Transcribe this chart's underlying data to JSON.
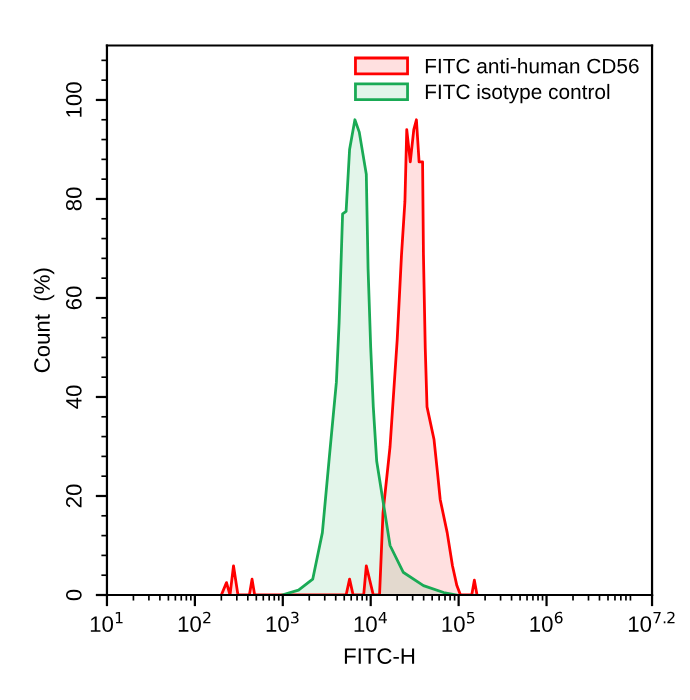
{
  "chart_data": {
    "type": "area",
    "xlabel": "FITC-H",
    "ylabel": "Count  (%)",
    "log": "x",
    "legend": "top right",
    "grid": false,
    "xlim": [
      10,
      15848932
    ],
    "xticks": [
      {
        "value": 10,
        "label": "10$^{1}$"
      },
      {
        "value": 100,
        "label": "10$^{2}$"
      },
      {
        "value": 1000,
        "label": "10$^{3}$"
      },
      {
        "value": 10000,
        "label": "10$^{4}$"
      },
      {
        "value": 100000,
        "label": "10$^{5}$"
      },
      {
        "value": 1000000,
        "label": "10$^{6}$"
      },
      {
        "value": 15848932,
        "label": "10$^{7.2}$"
      }
    ],
    "ylim": [
      0,
      111
    ],
    "yticks": [
      0,
      20,
      40,
      60,
      80,
      100
    ],
    "series": [
      {
        "name": "FITC anti-human CD56",
        "color": "#ff0000",
        "x": [
          200,
          229,
          251,
          275,
          309,
          417,
          447,
          479,
          5250,
          5750,
          6310,
          8320,
          8910,
          10700,
          12600,
          13800,
          16600,
          20000,
          22400,
          24500,
          25700,
          28200,
          30900,
          33100,
          35500,
          38900,
          39800,
          41700,
          43700,
          52500,
          57500,
          61700,
          74100,
          85100,
          95500,
          105000,
          141000,
          151000,
          162000
        ],
        "values": [
          0,
          2.5,
          0,
          5.9,
          0,
          0,
          3.2,
          0,
          0,
          3.2,
          0,
          0,
          5.9,
          0,
          0,
          16.6,
          30,
          51.5,
          68.7,
          79.5,
          94,
          87.5,
          94,
          96,
          87.5,
          87.5,
          68.7,
          50,
          38,
          31.4,
          24.7,
          19.3,
          12.6,
          5.9,
          1.9,
          0,
          0,
          3,
          0
        ]
      },
      {
        "name": "FITC isotype control",
        "color": "#1aaa55",
        "x": [
          977,
          1510,
          2190,
          2820,
          3390,
          4070,
          4370,
          4790,
          5250,
          5750,
          6610,
          7410,
          8910,
          9330,
          10000,
          10700,
          11700,
          13800,
          16600,
          23400,
          39800,
          67600,
          95500
        ],
        "values": [
          0,
          1,
          3.2,
          12.6,
          28,
          43,
          55,
          77,
          77.5,
          90,
          96,
          93.5,
          85,
          66,
          50,
          38,
          27,
          19,
          10,
          4.6,
          1.9,
          0.5,
          0
        ]
      }
    ]
  }
}
